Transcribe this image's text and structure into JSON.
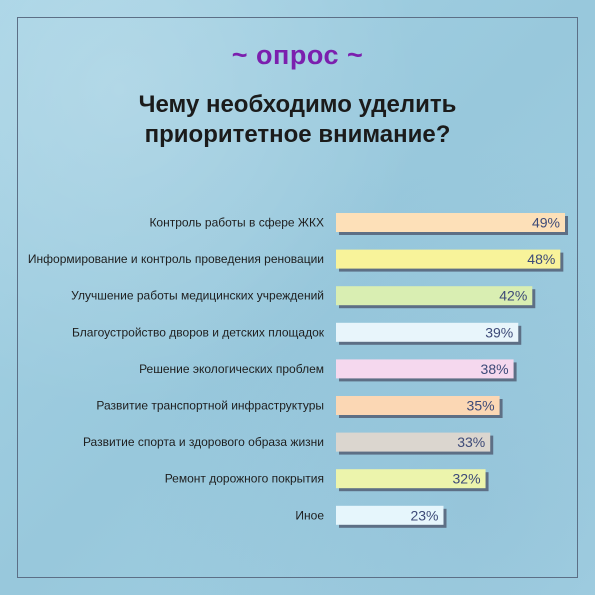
{
  "header": {
    "tag": "~ опрос ~",
    "title_line1": "Чему необходимо уделить",
    "title_line2": "приоритетное внимание?"
  },
  "chart_data": {
    "type": "bar",
    "orientation": "horizontal",
    "categories": [
      "Контроль работы в сфере ЖКХ",
      "Информирование и контроль проведения реновации",
      "Улучшение работы медицинских учреждений",
      "Благоустройство дворов и детских площадок",
      "Решение экологических проблем",
      "Развитие транспортной инфраструктуры",
      "Развитие спорта и здорового образа жизни",
      "Ремонт дорожного покрытия",
      "Иное"
    ],
    "values": [
      49,
      48,
      42,
      39,
      38,
      35,
      33,
      32,
      23
    ],
    "value_labels": [
      "49%",
      "48%",
      "42%",
      "39%",
      "38%",
      "35%",
      "33%",
      "32%",
      "23%"
    ],
    "unit": "%",
    "bar_colors": [
      "#fde0b8",
      "#f8f39a",
      "#d9eeb2",
      "#e8f5fb",
      "#f5d8ee",
      "#fbd7b4",
      "#dbd6cf",
      "#ecf4ac",
      "#e6f6fc"
    ],
    "xlim": [
      0,
      49
    ],
    "grid": false,
    "legend": "none"
  }
}
